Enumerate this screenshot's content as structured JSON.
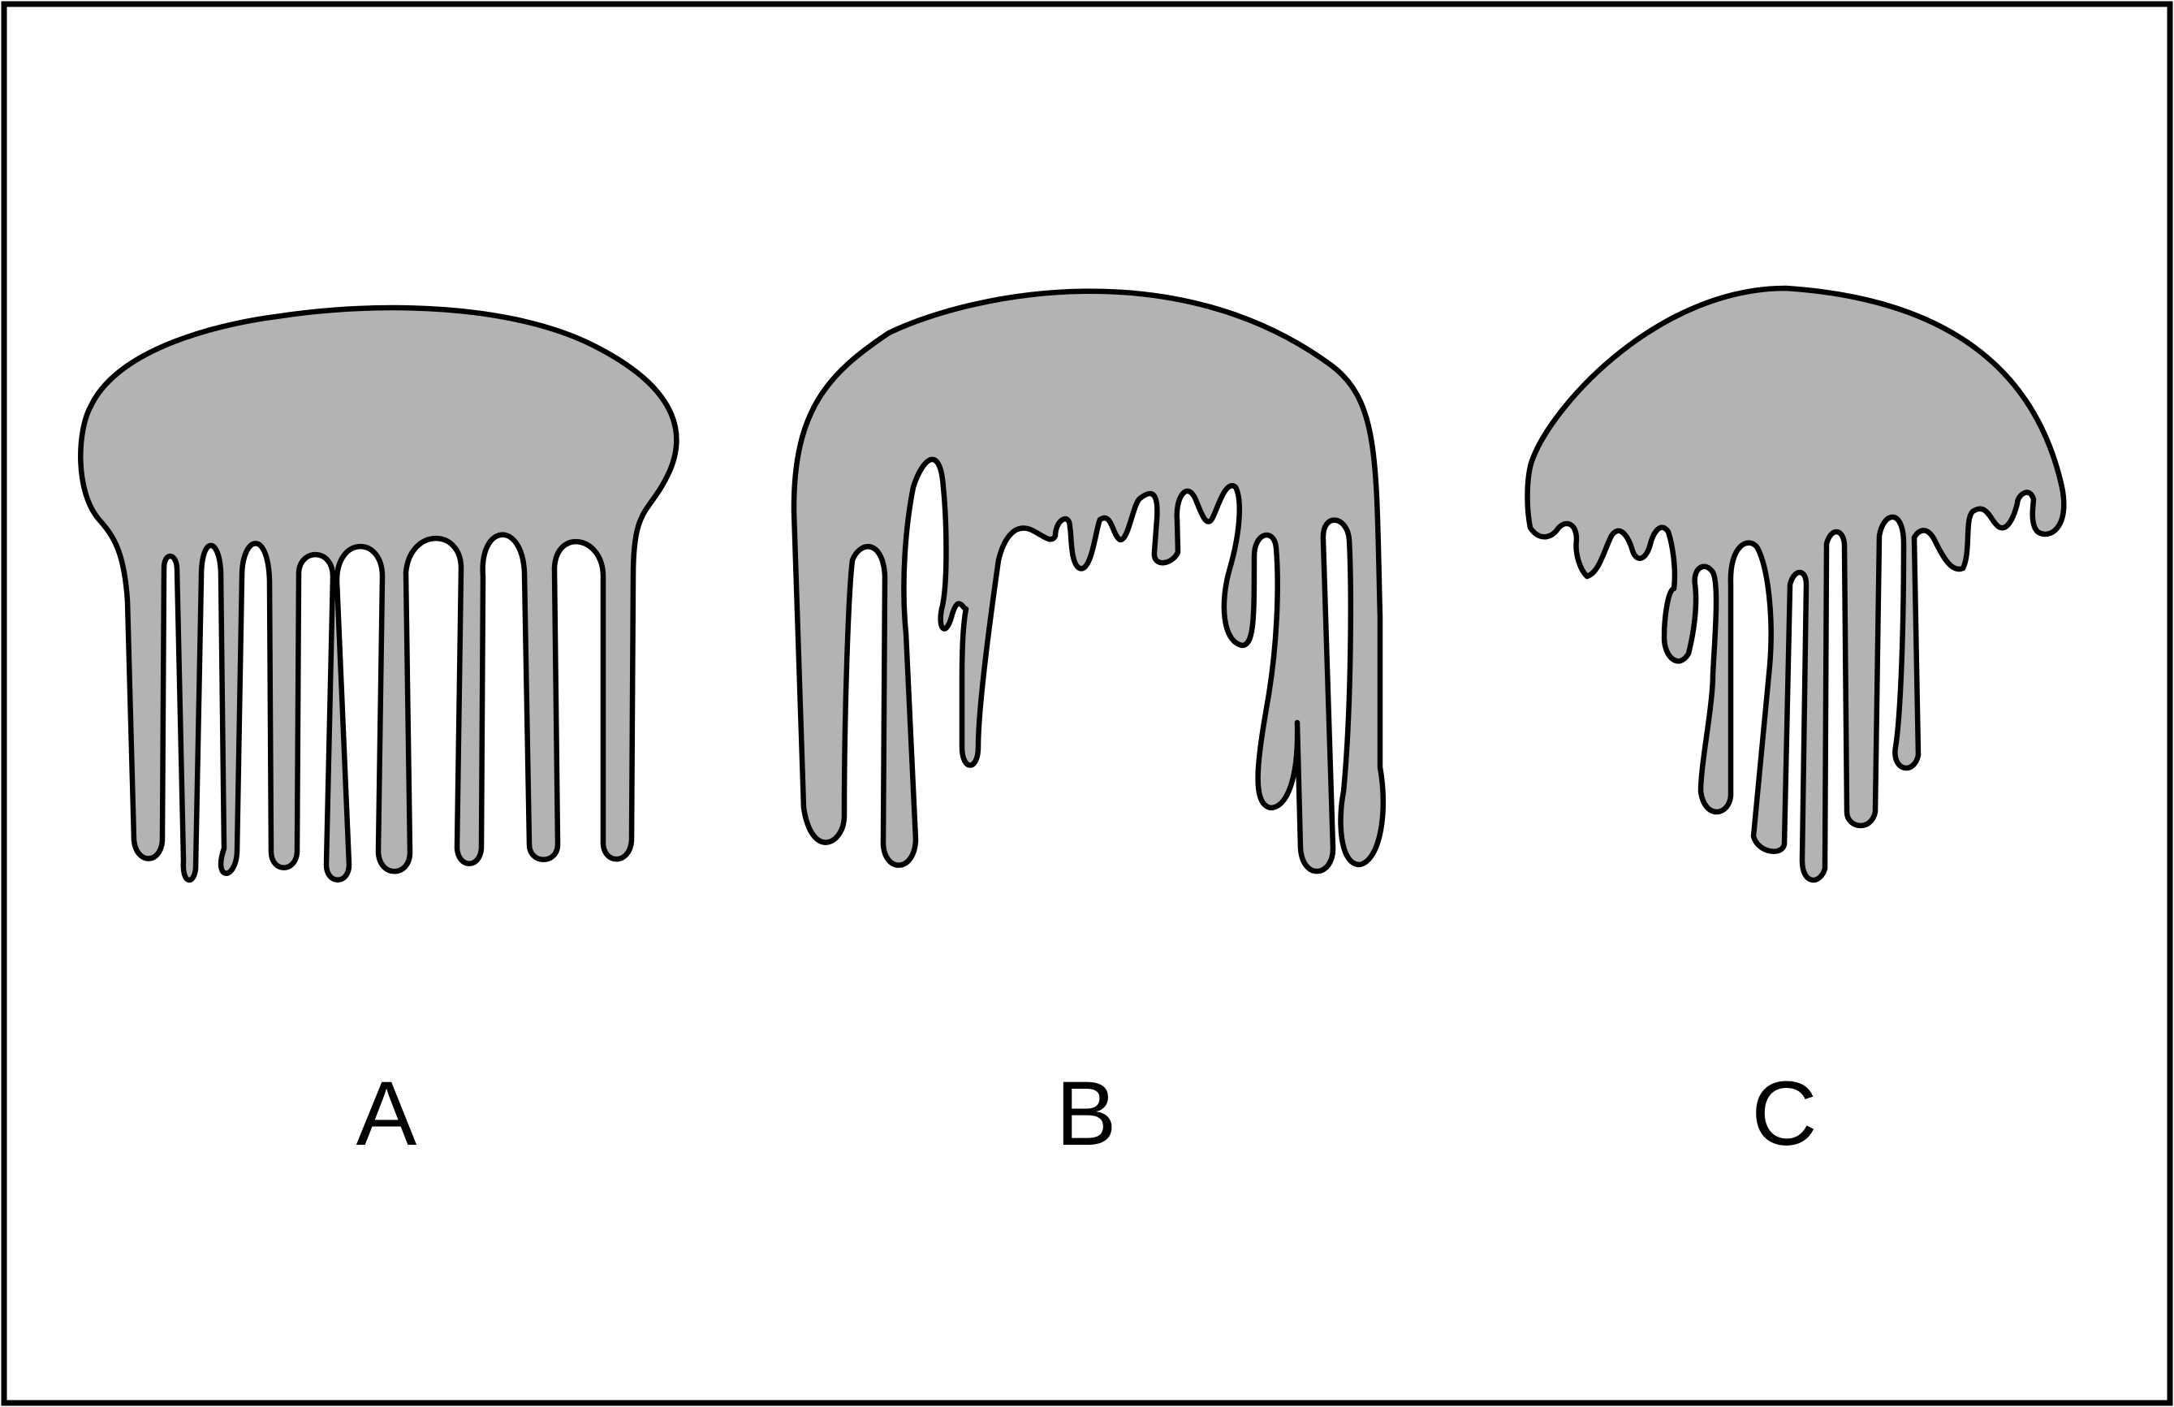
{
  "colors": {
    "fill": "#b3b3b3",
    "stroke": "#000000",
    "background": "#ffffff"
  },
  "panels": [
    {
      "label": "A",
      "shape": "comb-like-drip"
    },
    {
      "label": "B",
      "shape": "irregular-drip"
    },
    {
      "label": "C",
      "shape": "dome-drip"
    }
  ]
}
